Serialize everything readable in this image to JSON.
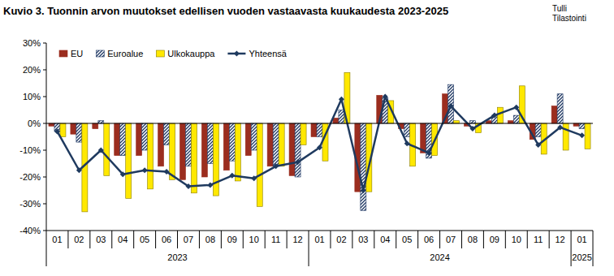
{
  "chart_data": {
    "type": "bar",
    "title": "Kuvio 3. Tuonnin arvon muutokset edellisen vuoden vastaavasta kuukaudesta 2023-2025",
    "source": [
      "Tulli",
      "Tilastointi"
    ],
    "categories": [
      "01",
      "02",
      "03",
      "04",
      "05",
      "06",
      "07",
      "08",
      "09",
      "10",
      "11",
      "12",
      "01",
      "02",
      "03",
      "04",
      "05",
      "06",
      "07",
      "08",
      "09",
      "10",
      "11",
      "12",
      "01"
    ],
    "x_groups": [
      {
        "label": "2023",
        "span": 12
      },
      {
        "label": "2024",
        "span": 12
      },
      {
        "label": "2025",
        "span": 1
      }
    ],
    "series": [
      {
        "name": "EU",
        "type": "bar",
        "color": "#9b2d1f",
        "values": [
          -1,
          -4,
          -2,
          -12,
          -12,
          -16,
          -21,
          -20,
          -17.5,
          -12,
          -16,
          -19.5,
          -5,
          2,
          -25.5,
          10.5,
          -2,
          -11,
          11,
          -1,
          1,
          1,
          -6,
          6.5,
          -1
        ]
      },
      {
        "name": "Euroalue",
        "type": "bar",
        "color": "#1f3864",
        "values": [
          -3,
          -7,
          1,
          -12,
          -10,
          -8,
          -16,
          -15,
          -14,
          -10,
          -16,
          -20,
          -5,
          5,
          -32.5,
          9.5,
          -5,
          -13,
          14.5,
          1,
          3,
          3,
          -5,
          11,
          -2
        ]
      },
      {
        "name": "Ulkokauppa",
        "type": "bar",
        "color": "#ffe800",
        "values": [
          -5,
          -33,
          -19.5,
          -28,
          -24.5,
          -21,
          -26,
          -27,
          -21.5,
          -31,
          -16,
          -8,
          -14,
          19,
          -25.5,
          8.5,
          -16,
          -12,
          1,
          -3.5,
          6,
          14,
          -11.5,
          -10,
          -9.5
        ]
      },
      {
        "name": "Yhteensä",
        "type": "line",
        "color": "#1f3a5f",
        "marker": "diamond",
        "values": [
          -3,
          -17.5,
          -10,
          -19,
          -17.5,
          -18,
          -23.5,
          -23,
          -19.5,
          -20.5,
          -16,
          -14.5,
          -9,
          9,
          -25,
          10,
          -7.5,
          -11,
          6.5,
          -2,
          3,
          6,
          -8,
          -1.5,
          -4.5
        ]
      }
    ],
    "ylim": [
      -40,
      30
    ],
    "yticks": [
      {
        "value": -40,
        "label": "-40%"
      },
      {
        "value": -30,
        "label": "-30%"
      },
      {
        "value": -20,
        "label": "-20%"
      },
      {
        "value": -10,
        "label": "-10%"
      },
      {
        "value": 0,
        "label": "0%"
      },
      {
        "value": 10,
        "label": "10%"
      },
      {
        "value": 20,
        "label": "20%"
      },
      {
        "value": 30,
        "label": "30%"
      }
    ],
    "grid": false,
    "legend": "top-left"
  }
}
